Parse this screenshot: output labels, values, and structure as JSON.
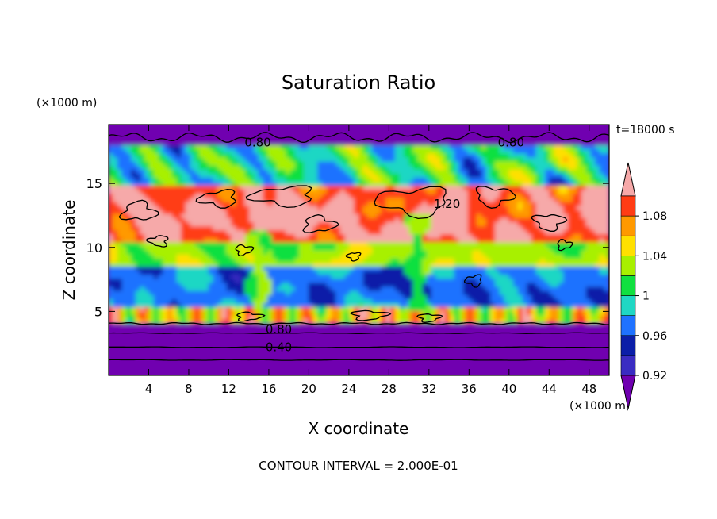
{
  "chart_data": {
    "type": "heatmap",
    "title": "Saturation Ratio",
    "xlabel": "X coordinate",
    "ylabel": "Z coordinate",
    "x_unit": "(×1000 m)",
    "y_unit": "(×1000 m)",
    "time_label": "t=18000 s",
    "footer": "CONTOUR INTERVAL = 2.000E-01",
    "xlim": [
      0,
      50
    ],
    "ylim": [
      0,
      19.6
    ],
    "x_ticks": [
      4,
      8,
      12,
      16,
      20,
      24,
      28,
      32,
      36,
      40,
      44,
      48
    ],
    "y_ticks": [
      5,
      10,
      15
    ],
    "colorbar": {
      "labels": [
        "0.92",
        "0.96",
        "1",
        "1.04",
        "1.08"
      ],
      "bins": [
        {
          "upper": 0.92,
          "color": "#6f00b0"
        },
        {
          "upper": 0.94,
          "color": "#3a2cc2"
        },
        {
          "upper": 0.96,
          "color": "#0b1ea8"
        },
        {
          "upper": 0.98,
          "color": "#1f72ff"
        },
        {
          "upper": 1.0,
          "color": "#1fd7c4"
        },
        {
          "upper": 1.02,
          "color": "#10e040"
        },
        {
          "upper": 1.04,
          "color": "#a8f000"
        },
        {
          "upper": 1.06,
          "color": "#ffe000"
        },
        {
          "upper": 1.08,
          "color": "#ff9900"
        },
        {
          "upper": 1.1,
          "color": "#ff3c14"
        },
        {
          "upper": 99,
          "color": "#f6a9a9"
        }
      ]
    },
    "contour_labels": [
      {
        "text": "0.80",
        "x": 14.9,
        "z": 18.2
      },
      {
        "text": "0.80",
        "x": 40.2,
        "z": 18.2
      },
      {
        "text": "1.20",
        "x": 33.8,
        "z": 13.4
      },
      {
        "text": "0.80",
        "x": 17.0,
        "z": 3.6
      },
      {
        "text": "0.40",
        "x": 17.0,
        "z": 2.2
      }
    ],
    "regions": {
      "upper_dry_band": {
        "z": [
          18,
          19.6
        ],
        "value": 0.82
      },
      "moist_layer": {
        "z": [
          5.5,
          17.5
        ],
        "value_range": [
          0.93,
          1.2
        ]
      },
      "supersaturated_core": {
        "z": [
          10.5,
          15.0
        ],
        "value": 1.15
      },
      "lower_dry_layer": {
        "z": [
          0,
          4.0
        ],
        "value": 0.5
      },
      "convective_columns": [
        {
          "x": 15.0,
          "z": [
            5.0,
            11.5
          ],
          "value": 1.02
        },
        {
          "x": 31.0,
          "z": [
            5.0,
            12.5
          ],
          "value": 1.02
        }
      ]
    }
  }
}
